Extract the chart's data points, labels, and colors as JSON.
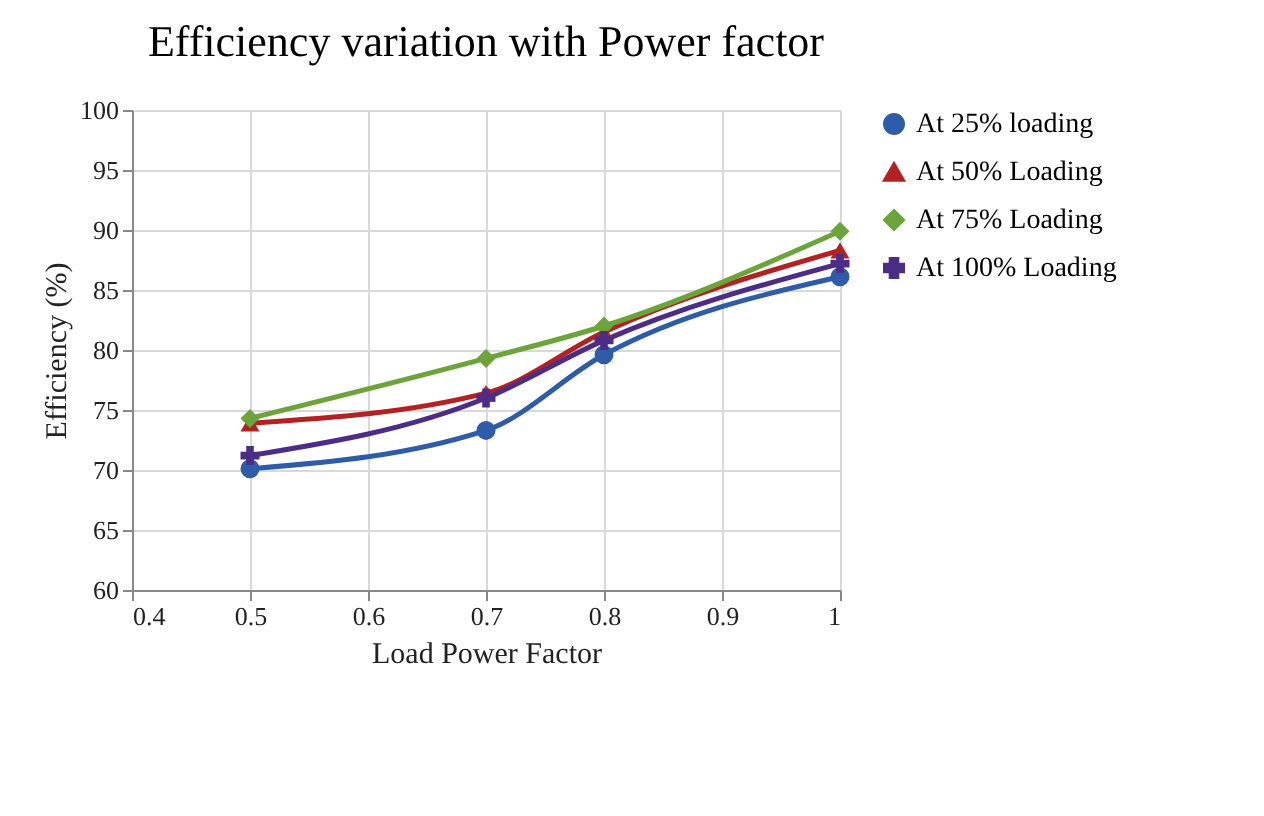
{
  "chart_data": {
    "type": "line",
    "title": "Efficiency variation with Power factor",
    "xlabel": "Load Power Factor",
    "ylabel": "Efficiency (%)",
    "x": [
      0.5,
      0.7,
      0.8,
      1
    ],
    "series": [
      {
        "name": "At 25% loading",
        "color": "#2e5ca8",
        "marker": "circle",
        "values": [
          70.1,
          73.3,
          79.6,
          86.1
        ]
      },
      {
        "name": "At 50% Loading",
        "color": "#b22222",
        "marker": "triangle",
        "values": [
          73.9,
          76.4,
          81.5,
          88.3
        ]
      },
      {
        "name": "At 75% Loading",
        "color": "#6aa43a",
        "marker": "diamond",
        "values": [
          74.3,
          79.3,
          82.0,
          89.9
        ]
      },
      {
        "name": "At 100% Loading",
        "color": "#4b2c86",
        "marker": "cross",
        "values": [
          71.2,
          76.0,
          80.8,
          87.2
        ]
      }
    ],
    "xlim": [
      0.4,
      1
    ],
    "xticks": [
      0.4,
      0.5,
      0.6,
      0.7,
      0.8,
      0.9,
      1
    ],
    "ylim": [
      60,
      100
    ],
    "yticks": [
      60,
      65,
      70,
      75,
      80,
      85,
      90,
      95,
      100
    ],
    "grid": true,
    "legend": "right"
  }
}
